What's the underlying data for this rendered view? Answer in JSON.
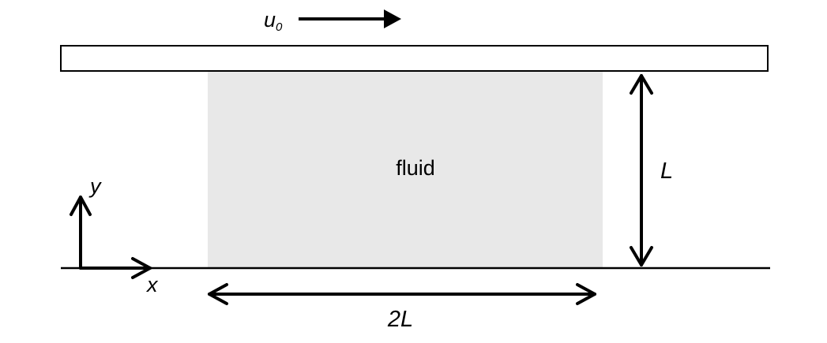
{
  "diagram": {
    "velocity_label_main": "u",
    "velocity_label_sub": "0",
    "fluid_label": "fluid",
    "height_label": "L",
    "width_label": "2L",
    "axis_x_label": "x",
    "axis_y_label": "y"
  },
  "colors": {
    "fluid_fill": "#e8e8e8",
    "stroke": "#000000",
    "plate_fill": "#ffffff"
  }
}
